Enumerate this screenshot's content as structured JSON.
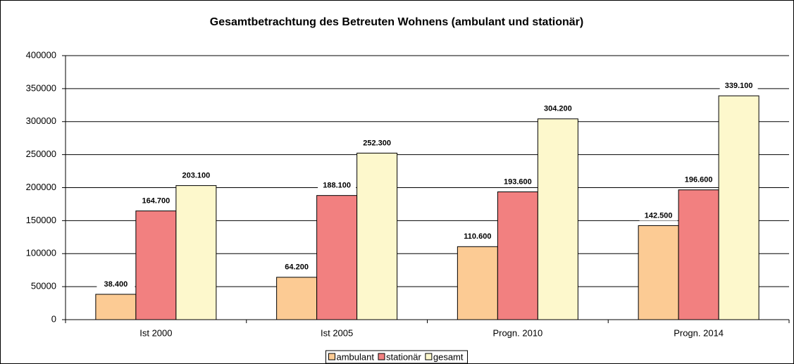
{
  "chart_data": {
    "type": "bar",
    "title": "Gesamtbetrachtung des Betreuten Wohnens (ambulant und stationär)",
    "categories": [
      "Ist 2000",
      "Ist 2005",
      "Progn. 2010",
      "Progn. 2014"
    ],
    "series": [
      {
        "name": "ambulant",
        "color": "#fccb94",
        "values": [
          38400,
          64200,
          110600,
          142500
        ],
        "value_labels": [
          "38.400",
          "64.200",
          "110.600",
          "142.500"
        ]
      },
      {
        "name": "stationär",
        "color": "#f28080",
        "values": [
          164700,
          188100,
          193600,
          196600
        ],
        "value_labels": [
          "164.700",
          "188.100",
          "193.600",
          "196.600"
        ]
      },
      {
        "name": "gesamt",
        "color": "#fdf8cc",
        "values": [
          203100,
          252300,
          304200,
          339100
        ],
        "value_labels": [
          "203.100",
          "252.300",
          "304.200",
          "339.100"
        ]
      }
    ],
    "ylim": [
      0,
      400000
    ],
    "yticks": [
      0,
      50000,
      100000,
      150000,
      200000,
      250000,
      300000,
      350000,
      400000
    ],
    "grid": true,
    "legend": "bottom"
  }
}
